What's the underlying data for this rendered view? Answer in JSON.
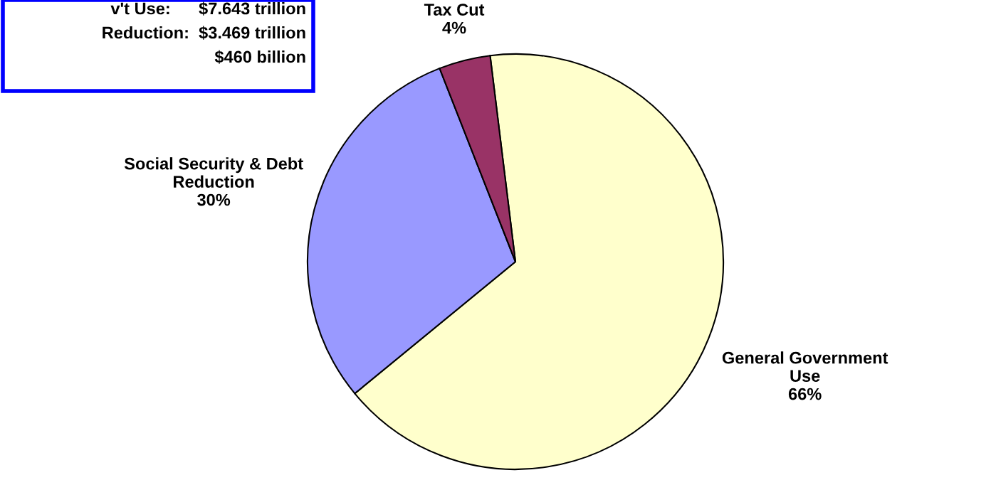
{
  "chart_data": {
    "type": "pie",
    "categories": [
      "General Government\nUse",
      "Social Security & Debt\nReduction",
      "Tax Cut"
    ],
    "values": [
      66,
      30,
      4
    ],
    "colors": [
      "#ffffcc",
      "#9999ff",
      "#993366"
    ],
    "value_labels": [
      "66%",
      "30%",
      "4%"
    ],
    "annotations": [
      "v't Use:      $7.643 trillion",
      "Reduction:  $3.469 trillion",
      "$460 billion"
    ]
  }
}
